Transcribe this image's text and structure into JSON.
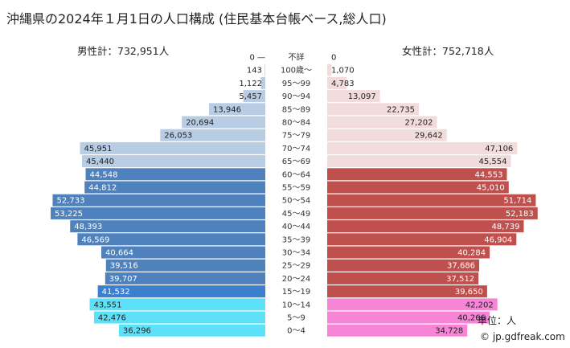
{
  "title": "沖縄県の2024年１月1日の人口構成 (住民基本台帳ベース,総人口)",
  "male_total": "男性計：732,951人",
  "female_total": "女性計：752,718人",
  "unit": "単位：人",
  "copyright": "© jp.gdfreak.com",
  "chart_data": {
    "type": "bar",
    "subtype": "population-pyramid",
    "categories": [
      "不詳",
      "100歳～",
      "95～99",
      "90～94",
      "85～89",
      "80～84",
      "75～79",
      "70～74",
      "65～69",
      "60～64",
      "55～59",
      "50～54",
      "45～49",
      "40～44",
      "35～39",
      "30～34",
      "25～29",
      "20～24",
      "15～19",
      "10～14",
      "5～9",
      "0～4"
    ],
    "series": [
      {
        "name": "男性",
        "values": [
          0,
          143,
          1122,
          5457,
          13946,
          20694,
          26053,
          45951,
          45440,
          44548,
          44812,
          52733,
          53225,
          48393,
          46569,
          40664,
          39516,
          39707,
          41532,
          43551,
          42476,
          36296
        ],
        "labels": [
          "0 —",
          "143",
          "1,122",
          "5,457",
          "13,946",
          "20,694",
          "26,053",
          "45,951",
          "45,440",
          "44,548",
          "44,812",
          "52,733",
          "53,225",
          "48,393",
          "46,569",
          "40,664",
          "39,516",
          "39,707",
          "41,532",
          "43,551",
          "42,476",
          "36,296"
        ]
      },
      {
        "name": "女性",
        "values": [
          0,
          1070,
          4783,
          13097,
          22735,
          27202,
          29642,
          47106,
          45554,
          44553,
          45010,
          51714,
          52183,
          48739,
          46904,
          40284,
          37686,
          37512,
          39650,
          42202,
          40266,
          34728
        ],
        "labels": [
          "0",
          "1,070",
          "4,783",
          "13,097",
          "22,735",
          "27,202",
          "29,642",
          "47,106",
          "45,554",
          "44,553",
          "45,010",
          "51,714",
          "52,183",
          "48,739",
          "46,904",
          "40,284",
          "37,686",
          "37,512",
          "39,650",
          "42,202",
          "40,266",
          "34,728"
        ]
      }
    ],
    "colors": {
      "male_elderly": "#b8cce4",
      "male_working": "#4f81bd",
      "male_15_19": "#3d7fcf",
      "male_young": "#5ce1f9",
      "female_elderly": "#f2dcdb",
      "female_working": "#c0504d",
      "female_young": "#f784d6"
    },
    "xlim": [
      0,
      55000
    ]
  }
}
